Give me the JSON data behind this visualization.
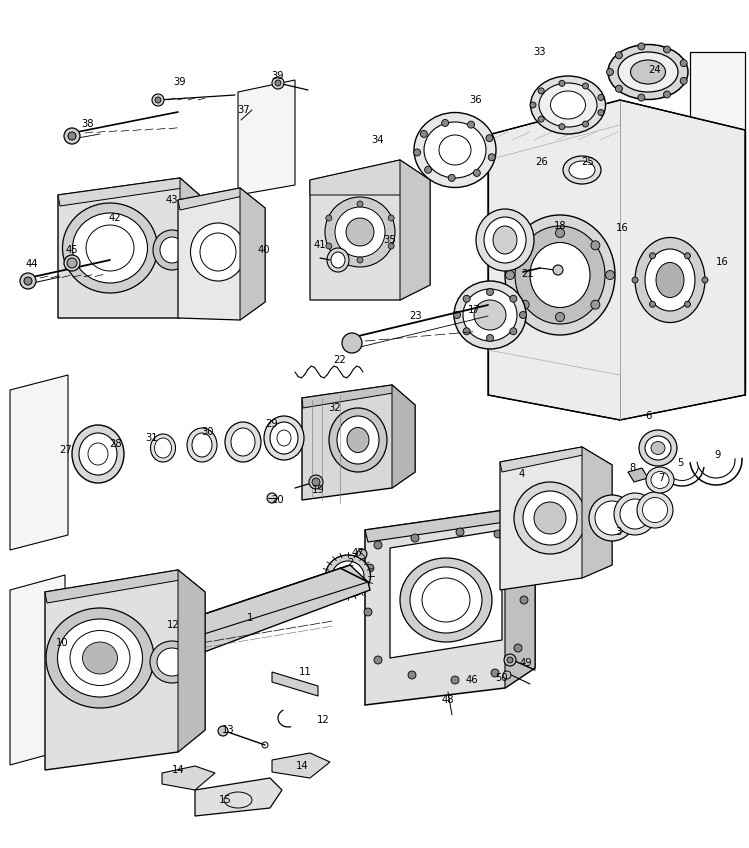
{
  "background_color": "#ffffff",
  "line_color": "#000000",
  "figure_width": 7.49,
  "figure_height": 8.48,
  "dpi": 100
}
